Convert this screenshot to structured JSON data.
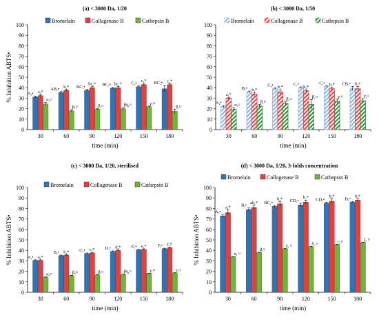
{
  "series_names": [
    "Bromelain",
    "Collagenase B",
    "Cathepsin B"
  ],
  "colors": {
    "bromelain": "#2E75B6",
    "collagenase": "#E0403F",
    "cathepsin": "#6FB43C",
    "bromelain_hatch": "#8FB3DE",
    "collagenase_hatch": "#E0403F",
    "cathepsin_hatch": "#2E8B3A",
    "axis": "#000000"
  },
  "chart_data": [
    {
      "type": "bar",
      "title": "(a)  < 3000 Da, 1/20",
      "xlabel": "time (min)",
      "ylabel": "% Inhibition ABTS•",
      "ylim": [
        0,
        100
      ],
      "yticks": [
        0,
        10,
        20,
        30,
        40,
        50,
        60,
        70,
        80,
        90,
        100
      ],
      "categories": [
        "30",
        "60",
        "90",
        "120",
        "150",
        "180"
      ],
      "style": "solid",
      "legend": "top-left",
      "series": [
        {
          "name": "Bromelain",
          "values": [
            31,
            35.5,
            37.5,
            39.5,
            41,
            39
          ],
          "errors": [
            1,
            0.8,
            0.8,
            0.8,
            0.8,
            3
          ],
          "labels": [
            "A,•",
            "AB,•",
            "BC,•",
            "BC,•",
            "C,•",
            "BC,•"
          ]
        },
        {
          "name": "Collagenase B",
          "values": [
            32.5,
            37.5,
            40,
            40,
            43,
            43
          ],
          "errors": [
            1,
            0.8,
            1,
            1.2,
            1,
            0.8
          ],
          "labels": [
            "a,*",
            "b,*",
            "bc,*",
            "bc,*",
            "c,*",
            "c,*"
          ]
        },
        {
          "name": "Cathepsin B",
          "values": [
            24.5,
            18,
            19.5,
            20,
            22,
            17.5
          ],
          "errors": [
            1.5,
            1,
            0.5,
            1,
            0.5,
            2
          ],
          "labels": [
            "α,¤",
            "β,¤",
            "β,¤",
            "βγ,¤",
            "γ,¤",
            "β,¤"
          ]
        }
      ]
    },
    {
      "type": "bar",
      "title": "(b)  < 3000 Da, 1/50",
      "xlabel": "time (min)",
      "ylabel": "",
      "ylim": [
        0,
        100
      ],
      "yticks": [
        0,
        10,
        20,
        30,
        40,
        50,
        60,
        70,
        80,
        90,
        100
      ],
      "categories": [
        "30",
        "60",
        "90",
        "120",
        "150",
        "180"
      ],
      "style": "hatched",
      "legend": "top-left",
      "series": [
        {
          "name": "Bromelain",
          "values": [
            22,
            36,
            39,
            40,
            41,
            39
          ],
          "errors": [
            1,
            0.8,
            0.8,
            0.8,
            0.8,
            2
          ],
          "labels": [
            "A,•",
            "B,•",
            "C,•",
            "C,•",
            "C,•",
            "CB,•"
          ]
        },
        {
          "name": "Collagenase B",
          "values": [
            30,
            34,
            36,
            37,
            39,
            39
          ],
          "errors": [
            0.8,
            1.5,
            2,
            1,
            1.5,
            2
          ],
          "labels": [
            "a,*",
            "b,*",
            "b,*",
            "b,*",
            "b,*",
            "b,*"
          ]
        },
        {
          "name": "Cathepsin B",
          "values": [
            19.5,
            22.5,
            25,
            24,
            27,
            27.5
          ],
          "errors": [
            1.5,
            1.5,
            1.5,
            4.5,
            2,
            2
          ],
          "labels": [
            "α,¤",
            "β,¤",
            "β,¤",
            "β,¤",
            "γ,¤",
            "γ,¤"
          ]
        }
      ]
    },
    {
      "type": "bar",
      "title": "(c)  < 3000 Da, 1/20, sterilised",
      "xlabel": "time (min)",
      "ylabel": "% Inhibition ABTS•",
      "ylim": [
        0,
        100
      ],
      "yticks": [
        0,
        10,
        20,
        30,
        40,
        50,
        60,
        70,
        80,
        90,
        100
      ],
      "categories": [
        "30",
        "60",
        "90",
        "120",
        "150",
        "180"
      ],
      "style": "solid",
      "legend": "top-left",
      "series": [
        {
          "name": "Bromelain",
          "values": [
            30.5,
            35,
            37,
            39,
            40.5,
            41.5
          ],
          "errors": [
            0.5,
            0.5,
            0.5,
            0.5,
            0.5,
            0.5
          ],
          "labels": [
            "A,•",
            "B,•",
            "C,•",
            "D,•",
            "E,•",
            "F,•"
          ]
        },
        {
          "name": "Collagenase B",
          "values": [
            30.5,
            35.5,
            37.5,
            40,
            41,
            42.5
          ],
          "errors": [
            0.5,
            0.5,
            0.5,
            0.5,
            0.5,
            0.5
          ],
          "labels": [
            "a,*",
            "b,*",
            "c,*",
            "d,*",
            "e,*",
            "f,*"
          ]
        },
        {
          "name": "Cathepsin B",
          "values": [
            14.5,
            16,
            16.5,
            17,
            18,
            18.5
          ],
          "errors": [
            0.3,
            0.3,
            0.3,
            0.3,
            0.3,
            0.3
          ],
          "labels": [
            "α,¤",
            "β,¤",
            "β,¤",
            "βγ,¤",
            "γ,¤",
            "γ,¤"
          ]
        }
      ]
    },
    {
      "type": "bar",
      "title": "(d)  < 3000 Da, 1/20, 3-folds concentration",
      "xlabel": "time (min)",
      "ylabel": "% Inhibition ABTS•",
      "ylim": [
        0,
        100
      ],
      "yticks": [
        0,
        10,
        20,
        30,
        40,
        50,
        60,
        70,
        80,
        90,
        100
      ],
      "categories": [
        "30",
        "60",
        "90",
        "120",
        "150",
        "180"
      ],
      "style": "solid",
      "legend": "top-left",
      "series": [
        {
          "name": "Bromelain",
          "values": [
            73,
            79,
            82,
            83.5,
            85,
            86
          ],
          "errors": [
            1.5,
            1.5,
            1,
            1.5,
            1,
            0.5
          ],
          "labels": [
            "A,•",
            "B,•",
            "BC,•",
            "CD,•",
            "CD,•",
            "D,•"
          ]
        },
        {
          "name": "Collagenase B",
          "values": [
            76,
            81,
            84.5,
            86,
            87,
            88
          ],
          "errors": [
            2.5,
            2,
            2,
            2,
            2,
            1
          ],
          "labels": [
            "a,*",
            "ab,*",
            "b,*",
            "b,*",
            "b,*",
            "b,*"
          ]
        },
        {
          "name": "Cathepsin B",
          "values": [
            34,
            38,
            41.5,
            43.5,
            45.5,
            47.5
          ],
          "errors": [
            0.3,
            0.3,
            0.3,
            0.3,
            0.3,
            0.3
          ],
          "labels": [
            "α, ¤",
            "β,¤",
            "γ, ¤",
            "δ, ¤",
            "ε,¤",
            "ζ, ¤"
          ]
        }
      ]
    }
  ]
}
